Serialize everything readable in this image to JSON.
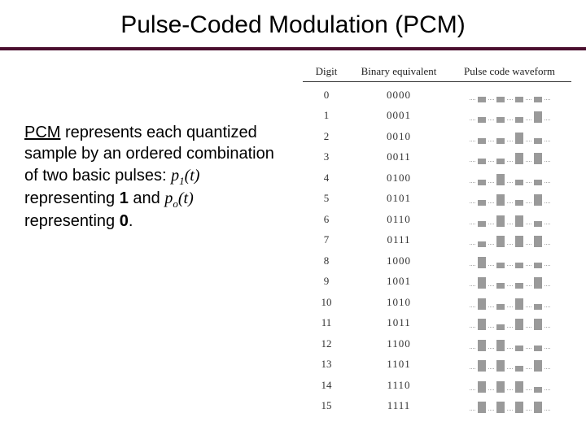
{
  "title": "Pulse-Coded Modulation (PCM)",
  "rule_color": "#4a0f2e",
  "paragraph": {
    "lead_underlined": "PCM",
    "rest1": " represents each quantized sample by an ordered combination of two basic pulses: ",
    "p1": "p",
    "sub1": "1",
    "of_t1": "(t)",
    "mid1": " representing ",
    "one": "1",
    "mid2": " and ",
    "p0": "p",
    "sub0": "o",
    "of_t0": "(t)",
    "mid3": " representing ",
    "zero": "0",
    "tail": "."
  },
  "table": {
    "headers": {
      "digit": "Digit",
      "binary": "Binary equivalent",
      "wave": "Pulse code waveform"
    },
    "header_font_size_pt": 10,
    "row_font_size_pt": 10,
    "pulse_color": "#9a9a9a",
    "rows": [
      {
        "digit": "0",
        "binary": "0000"
      },
      {
        "digit": "1",
        "binary": "0001"
      },
      {
        "digit": "2",
        "binary": "0010"
      },
      {
        "digit": "3",
        "binary": "0011"
      },
      {
        "digit": "4",
        "binary": "0100"
      },
      {
        "digit": "5",
        "binary": "0101"
      },
      {
        "digit": "6",
        "binary": "0110"
      },
      {
        "digit": "7",
        "binary": "0111"
      },
      {
        "digit": "8",
        "binary": "1000"
      },
      {
        "digit": "9",
        "binary": "1001"
      },
      {
        "digit": "10",
        "binary": "1010"
      },
      {
        "digit": "11",
        "binary": "1011"
      },
      {
        "digit": "12",
        "binary": "1100"
      },
      {
        "digit": "13",
        "binary": "1101"
      },
      {
        "digit": "14",
        "binary": "1110"
      },
      {
        "digit": "15",
        "binary": "1111"
      }
    ]
  },
  "colors": {
    "background": "#ffffff",
    "text": "#000000"
  }
}
